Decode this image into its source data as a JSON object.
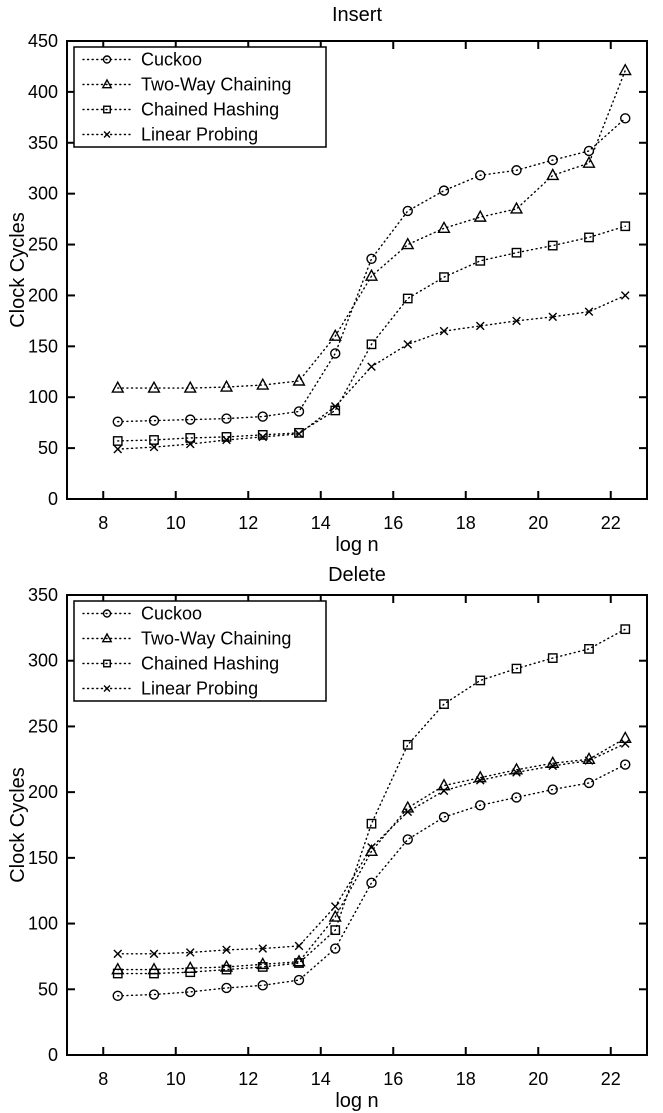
{
  "figure": {
    "background": "#ffffff",
    "ink_color": "#000000"
  },
  "chart_data": [
    {
      "type": "line",
      "title": "Insert",
      "xlabel": "log n",
      "ylabel": "Clock Cycles",
      "xlim": [
        7,
        23
      ],
      "ylim": [
        0,
        450
      ],
      "xticks": [
        8,
        10,
        12,
        14,
        16,
        18,
        20,
        22
      ],
      "yticks": [
        0,
        50,
        100,
        150,
        200,
        250,
        300,
        350,
        400,
        450
      ],
      "grid": false,
      "line_style": "dotted",
      "legend_position": "top-left",
      "x": [
        8.4,
        9.4,
        10.4,
        11.4,
        12.4,
        13.4,
        14.4,
        15.4,
        16.4,
        17.4,
        18.4,
        19.4,
        20.4,
        21.4,
        22.4
      ],
      "series": [
        {
          "name": "Cuckoo",
          "marker": "circle",
          "values": [
            76,
            77,
            78,
            79,
            81,
            86,
            143,
            236,
            283,
            303,
            318,
            323,
            333,
            342,
            374
          ]
        },
        {
          "name": "Two-Way Chaining",
          "marker": "triangle",
          "values": [
            109,
            109,
            109,
            110,
            112,
            116,
            160,
            219,
            250,
            266,
            277,
            285,
            318,
            330,
            421
          ]
        },
        {
          "name": "Chained Hashing",
          "marker": "square",
          "values": [
            57,
            58,
            60,
            61,
            63,
            65,
            87,
            152,
            197,
            218,
            234,
            242,
            249,
            257,
            268
          ]
        },
        {
          "name": "Linear Probing",
          "marker": "x",
          "values": [
            49,
            51,
            54,
            58,
            61,
            64,
            91,
            130,
            152,
            165,
            170,
            175,
            179,
            184,
            200
          ]
        }
      ]
    },
    {
      "type": "line",
      "title": "Delete",
      "xlabel": "log n",
      "ylabel": "Clock Cycles",
      "xlim": [
        7,
        23
      ],
      "ylim": [
        0,
        350
      ],
      "xticks": [
        8,
        10,
        12,
        14,
        16,
        18,
        20,
        22
      ],
      "yticks": [
        0,
        50,
        100,
        150,
        200,
        250,
        300,
        350
      ],
      "grid": false,
      "line_style": "dotted",
      "legend_position": "top-left",
      "x": [
        8.4,
        9.4,
        10.4,
        11.4,
        12.4,
        13.4,
        14.4,
        15.4,
        16.4,
        17.4,
        18.4,
        19.4,
        20.4,
        21.4,
        22.4
      ],
      "series": [
        {
          "name": "Cuckoo",
          "marker": "circle",
          "values": [
            45,
            46,
            48,
            51,
            53,
            57,
            81,
            131,
            164,
            181,
            190,
            196,
            202,
            207,
            221
          ]
        },
        {
          "name": "Two-Way Chaining",
          "marker": "triangle",
          "values": [
            65,
            65,
            66,
            67,
            69,
            71,
            105,
            155,
            188,
            205,
            211,
            217,
            222,
            225,
            241
          ]
        },
        {
          "name": "Chained Hashing",
          "marker": "square",
          "values": [
            62,
            62,
            63,
            65,
            67,
            70,
            95,
            176,
            236,
            267,
            285,
            294,
            302,
            309,
            324
          ]
        },
        {
          "name": "Linear Probing",
          "marker": "x",
          "values": [
            77,
            77,
            78,
            80,
            81,
            83,
            113,
            158,
            185,
            201,
            209,
            215,
            220,
            224,
            237
          ]
        }
      ]
    }
  ]
}
